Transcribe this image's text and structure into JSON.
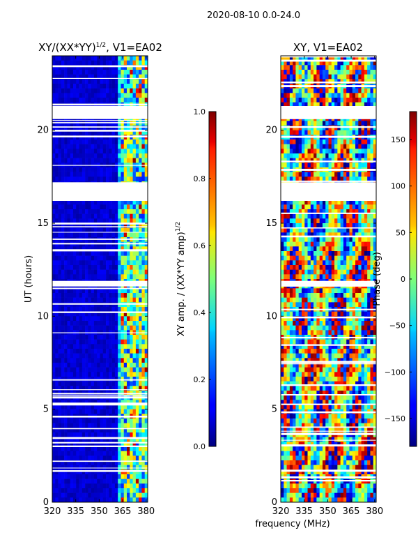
{
  "suptitle": "2020-08-10 0.0-24.0",
  "xlabel_shared": "frequency (MHz)",
  "chart_data": [
    {
      "type": "heatmap",
      "title": "XY/(XX*YY)",
      "title_exp": "1/2",
      "title_suffix": ", V1=EA02",
      "xlabel": "",
      "ylabel": "UT (hours)",
      "xlim": [
        320,
        381
      ],
      "ylim": [
        0,
        24
      ],
      "xticks": [
        320,
        335,
        350,
        365,
        380
      ],
      "yticks": [
        0,
        5,
        10,
        15,
        20
      ],
      "colorbar": {
        "label": "XY amp. / (XX*YY amp)",
        "label_exp": "1/2",
        "range": [
          0.0,
          1.0
        ],
        "ticks": [
          "0.0",
          "0.2",
          "0.4",
          "0.6",
          "0.8",
          "1.0"
        ]
      },
      "colormap": "jet",
      "gaps_ut": [
        [
          21.3,
          20.6
        ],
        [
          17.2,
          16.2
        ],
        [
          11.9,
          11.6
        ],
        [
          3.5,
          3.4
        ]
      ]
    },
    {
      "type": "heatmap",
      "title": "XY, V1=EA02",
      "xlabel": "",
      "ylabel": "",
      "xlim": [
        320,
        381
      ],
      "ylim": [
        0,
        24
      ],
      "xticks": [
        320,
        335,
        350,
        365,
        380
      ],
      "yticks": [
        0,
        5,
        10,
        15,
        20
      ],
      "colorbar": {
        "label": "Phase (deg)",
        "range": [
          -180,
          180
        ],
        "ticks": [
          "150",
          "100",
          "50",
          "0",
          "−50",
          "−100",
          "−150"
        ],
        "tick_values": [
          150,
          100,
          50,
          0,
          -50,
          -100,
          -150
        ]
      },
      "colormap": "jet",
      "gaps_ut": [
        [
          21.3,
          20.6
        ],
        [
          17.2,
          16.2
        ],
        [
          11.9,
          11.6
        ]
      ]
    }
  ]
}
